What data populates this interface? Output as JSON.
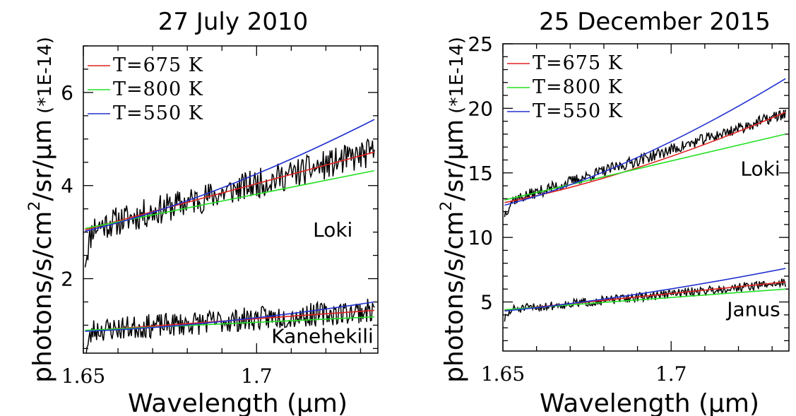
{
  "chart_data": [
    {
      "type": "line",
      "title": "27 July 2010",
      "xlabel": "Wavelength (μm)",
      "ylabel": {
        "main": "photons/s/cm",
        "superscript": "2",
        "rest": "/sr/μm",
        "unit": "(*1E-14)"
      },
      "xlim": [
        1.65,
        1.735
      ],
      "ylim": [
        0.4,
        7.0
      ],
      "x_ticks": [
        1.65,
        1.7
      ],
      "x_tick_labels": [
        "1.65",
        "1.7"
      ],
      "y_ticks": [
        2,
        4,
        6
      ],
      "y_tick_labels": [
        "2",
        "4",
        "6"
      ],
      "legend_placement": "top-left",
      "legend": [
        {
          "label": "T=675 K",
          "color": "#e02020"
        },
        {
          "label": "T=800 K",
          "color": "#22e022"
        },
        {
          "label": "T=550 K",
          "color": "#2030d0"
        }
      ],
      "annotations": [
        {
          "text": "Loki",
          "x": 1.722,
          "y": 2.9
        },
        {
          "text": "Kanehekili",
          "x": 1.719,
          "y": 0.62
        }
      ],
      "series": [
        {
          "name": "T=675 K",
          "color": "#e02020",
          "groups": [
            {
              "x": [
                1.6505,
                1.734
              ],
              "y": [
                3.05,
                4.72
              ]
            },
            {
              "x": [
                1.6505,
                1.734
              ],
              "y": [
                0.88,
                1.32
              ]
            }
          ]
        },
        {
          "name": "T=800 K",
          "color": "#22e022",
          "groups": [
            {
              "x": [
                1.6505,
                1.734
              ],
              "y": [
                3.08,
                4.32
              ]
            },
            {
              "x": [
                1.6505,
                1.734
              ],
              "y": [
                0.89,
                1.18
              ]
            }
          ]
        },
        {
          "name": "T=550 K",
          "color": "#2030d0",
          "groups": [
            {
              "x": [
                1.6505,
                1.69,
                1.734
              ],
              "y": [
                3.02,
                3.95,
                5.42
              ]
            },
            {
              "x": [
                1.6505,
                1.69,
                1.734
              ],
              "y": [
                0.87,
                1.08,
                1.5
              ]
            }
          ]
        }
      ],
      "observed": [
        {
          "target": "Loki",
          "x_start": 1.6505,
          "x_end": 1.734,
          "y_start": 3.05,
          "y_end": 4.72,
          "noise": 0.32,
          "seed": 11
        },
        {
          "target": "Kanehekili",
          "x_start": 1.6505,
          "x_end": 1.734,
          "y_start": 0.88,
          "y_end": 1.32,
          "noise": 0.26,
          "seed": 23
        }
      ]
    },
    {
      "type": "line",
      "title": "25 December 2015",
      "xlabel": "Wavelength (μm)",
      "ylabel": {
        "main": "photons/s/cm",
        "superscript": "2",
        "rest": "/sr/μm",
        "unit": "(*1E-14)"
      },
      "xlim": [
        1.65,
        1.735
      ],
      "ylim": [
        1.2,
        25.0
      ],
      "x_ticks": [
        1.65,
        1.7
      ],
      "x_tick_labels": [
        "1.65",
        "1.7"
      ],
      "y_ticks": [
        5,
        10,
        15,
        20,
        25
      ],
      "y_tick_labels": [
        "5",
        "10",
        "15",
        "20",
        "25"
      ],
      "legend_placement": "top-left",
      "legend": [
        {
          "label": "T=675 K",
          "color": "#e02020"
        },
        {
          "label": "T=800 K",
          "color": "#22e022"
        },
        {
          "label": "T=550 K",
          "color": "#2030d0"
        }
      ],
      "annotations": [
        {
          "text": "Loki",
          "x": 1.7265,
          "y": 14.8
        },
        {
          "text": "Janus",
          "x": 1.7245,
          "y": 3.9
        }
      ],
      "series": [
        {
          "name": "T=675 K",
          "color": "#e02020",
          "groups": [
            {
              "x": [
                1.6505,
                1.69,
                1.734
              ],
              "y": [
                12.7,
                15.4,
                19.7
              ]
            },
            {
              "x": [
                1.6505,
                1.734
              ],
              "y": [
                4.35,
                6.55
              ]
            }
          ]
        },
        {
          "name": "T=800 K",
          "color": "#22e022",
          "groups": [
            {
              "x": [
                1.6505,
                1.734
              ],
              "y": [
                12.9,
                18.0
              ]
            },
            {
              "x": [
                1.6505,
                1.734
              ],
              "y": [
                4.4,
                6.0
              ]
            }
          ]
        },
        {
          "name": "T=550 K",
          "color": "#2030d0",
          "groups": [
            {
              "x": [
                1.6505,
                1.69,
                1.734
              ],
              "y": [
                12.5,
                16.2,
                22.3
              ]
            },
            {
              "x": [
                1.6505,
                1.69,
                1.734
              ],
              "y": [
                4.3,
                5.6,
                7.6
              ]
            }
          ]
        }
      ],
      "observed": [
        {
          "target": "Loki",
          "x_start": 1.6505,
          "x_end": 1.734,
          "y_start": 12.7,
          "y_end": 19.6,
          "noise": 0.45,
          "seed": 37
        },
        {
          "target": "Janus",
          "x_start": 1.6505,
          "x_end": 1.734,
          "y_start": 4.35,
          "y_end": 6.5,
          "noise": 0.35,
          "seed": 51
        }
      ]
    }
  ]
}
